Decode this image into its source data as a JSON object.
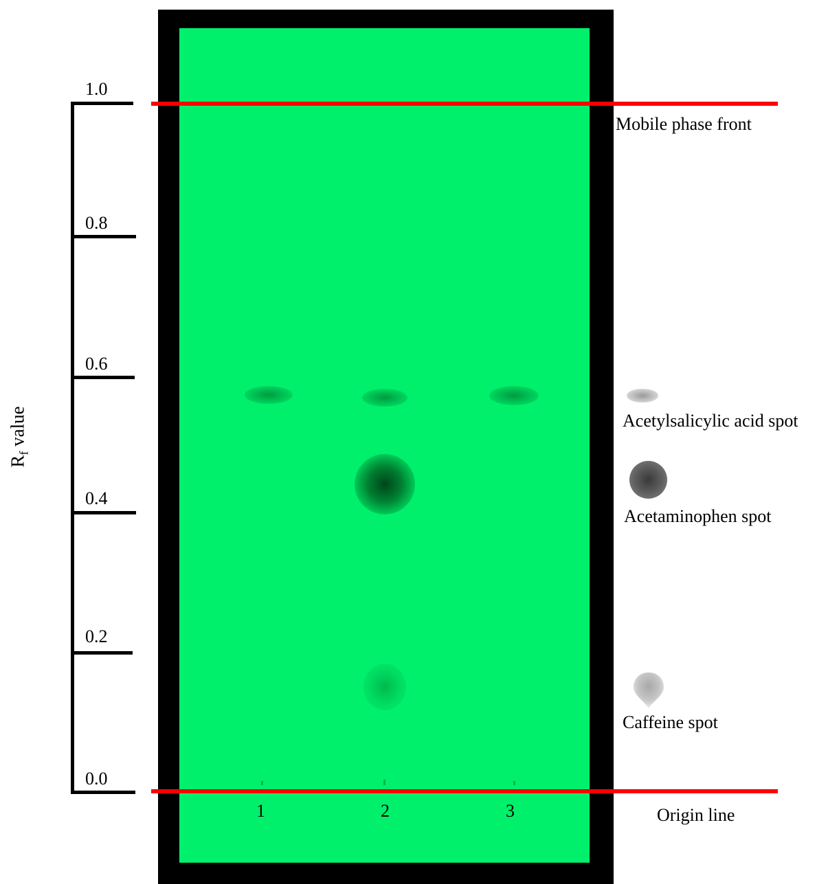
{
  "rf_scale": {
    "title_main": "R",
    "title_sub": "f",
    "title_rest": " value",
    "ticks": [
      "1.0",
      "0.8",
      "0.6",
      "0.4",
      "0.2",
      "0.0"
    ]
  },
  "lines": {
    "front_label": "Mobile phase front",
    "origin_label": "Origin line"
  },
  "lanes": [
    "1",
    "2",
    "3"
  ],
  "legend": {
    "acetylsalicylic": "Acetylsalicylic acid spot",
    "acetaminophen": "Acetaminophen spot",
    "caffeine": "Caffeine spot"
  },
  "colors": {
    "plate": "#00f06c",
    "frame": "#000000",
    "line": "#ff0000"
  }
}
